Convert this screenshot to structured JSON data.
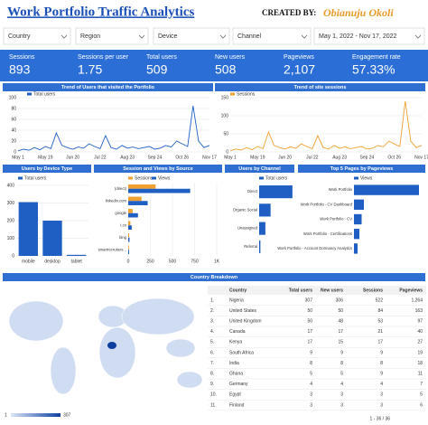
{
  "header": {
    "title": "Work Portfolio Traffic Analytics",
    "created_by": "CREATED BY:",
    "author": "Obianuju Okoli"
  },
  "filters": [
    "Country",
    "Region",
    "Device",
    "Channel",
    "May 1, 2022 - Nov 17, 2022"
  ],
  "kpis": [
    {
      "label": "Sessions",
      "value": "893"
    },
    {
      "label": "Sessions per user",
      "value": "1.75"
    },
    {
      "label": "Total users",
      "value": "509"
    },
    {
      "label": "New users",
      "value": "508"
    },
    {
      "label": "Pageviews",
      "value": "2,107"
    },
    {
      "label": "Engagement rate",
      "value": "57.33%"
    }
  ],
  "chart_data": [
    {
      "type": "line",
      "title": "Trend of Users that visited the Portfolio",
      "categories": [
        "May 1",
        null,
        null,
        null,
        null,
        "May 19",
        null,
        null,
        null,
        null,
        "Jun 20",
        null,
        null,
        null,
        null,
        "Jul 22",
        null,
        null,
        null,
        null,
        "Aug 23",
        null,
        null,
        null,
        null,
        "Sep 24",
        null,
        null,
        null,
        null,
        "Oct 26",
        null,
        null,
        null,
        null,
        "Nov 17"
      ],
      "series": [
        {
          "name": "Total users",
          "color": "#1f5fc4",
          "values": [
            2,
            5,
            3,
            8,
            4,
            10,
            6,
            35,
            12,
            8,
            5,
            9,
            7,
            15,
            10,
            6,
            30,
            8,
            5,
            12,
            7,
            9,
            6,
            8,
            10,
            5,
            7,
            12,
            9,
            20,
            15,
            10,
            85,
            20,
            8,
            12
          ]
        }
      ],
      "ylim": [
        0,
        100
      ],
      "yticks": [
        0,
        20,
        40,
        60,
        80,
        100
      ],
      "grid": true
    },
    {
      "type": "line",
      "title": "Trend of site sessions",
      "categories": [
        "May 1",
        null,
        null,
        null,
        null,
        "May 19",
        null,
        null,
        null,
        null,
        "Jun 20",
        null,
        null,
        null,
        null,
        "Jul 22",
        null,
        null,
        null,
        null,
        "Aug 23",
        null,
        null,
        null,
        null,
        "Sep 24",
        null,
        null,
        null,
        null,
        "Oct 26",
        null,
        null,
        null,
        null,
        "Nov 17"
      ],
      "series": [
        {
          "name": "Sessions",
          "color": "#f0a030",
          "values": [
            3,
            8,
            5,
            12,
            6,
            15,
            9,
            55,
            18,
            12,
            8,
            14,
            10,
            22,
            15,
            9,
            45,
            12,
            8,
            18,
            10,
            14,
            9,
            12,
            15,
            8,
            10,
            18,
            14,
            30,
            22,
            15,
            140,
            30,
            12,
            18
          ]
        }
      ],
      "ylim": [
        0,
        150
      ],
      "yticks": [
        0,
        50,
        100,
        150
      ],
      "grid": true
    },
    {
      "type": "bar",
      "title": "Users by Device Type",
      "categories": [
        "mobile",
        "desktop",
        "tablet"
      ],
      "series": [
        {
          "name": "Total users",
          "color": "#1f5fc4",
          "values": [
            305,
            200,
            6
          ]
        }
      ],
      "ylim": [
        0,
        400
      ],
      "yticks": [
        0,
        100,
        200,
        300,
        400
      ],
      "grid": true
    },
    {
      "type": "hbar",
      "title": "Session and Views by Source",
      "categories": [
        "(direct)",
        "linkedin.com",
        "google",
        "t.co",
        "bing",
        "smartrecruiters..."
      ],
      "series": [
        {
          "name": "Sessions",
          "color": "#f0a030",
          "values": [
            310,
            150,
            50,
            25,
            10,
            8
          ]
        },
        {
          "name": "Views",
          "color": "#1f5fc4",
          "values": [
            700,
            220,
            110,
            40,
            15,
            10
          ]
        }
      ],
      "xlim": [
        0,
        1000
      ],
      "xticks": [
        0,
        250,
        500,
        750,
        {
          "value": 1000,
          "label": "1K"
        }
      ],
      "grid": true
    },
    {
      "type": "hbar",
      "title": "Users by Channel",
      "categories": [
        "Direct",
        "Organic Social",
        "Unassigned",
        "Referral"
      ],
      "series": [
        {
          "name": "Total users",
          "color": "#1f5fc4",
          "values": [
            320,
            110,
            60,
            12
          ]
        }
      ],
      "xlim": [
        0,
        330
      ]
    },
    {
      "type": "hbar",
      "title": "Top 5 Pages by Pageviews",
      "categories": [
        "Work Portfolio",
        "Work Portfolio - CV Dashboard",
        "Work Portfolio - CV",
        "Work Portfolio - Certifications",
        "Work Portfolio - Account Dormancy Analytics"
      ],
      "series": [
        {
          "name": "Views",
          "color": "#1f5fc4",
          "values": [
            720,
            110,
            85,
            60,
            40
          ]
        }
      ],
      "xlim": [
        0,
        760
      ]
    },
    {
      "type": "map",
      "title": "Country Breakdown",
      "legend_min": 1,
      "legend_max": 307
    }
  ],
  "table": {
    "columns": [
      "Country",
      "Total users",
      "New users",
      "Sessions",
      "Pageviews"
    ],
    "rows": [
      [
        "1.",
        "Nigeria",
        "307",
        "306",
        "522",
        "1,264"
      ],
      [
        "2.",
        "United States",
        "50",
        "50",
        "84",
        "163"
      ],
      [
        "3.",
        "United Kingdom",
        "50",
        "48",
        "53",
        "97"
      ],
      [
        "4.",
        "Canada",
        "17",
        "17",
        "21",
        "40"
      ],
      [
        "5.",
        "Kenya",
        "17",
        "15",
        "17",
        "27"
      ],
      [
        "6.",
        "South Africa",
        "9",
        "9",
        "9",
        "19"
      ],
      [
        "7.",
        "India",
        "8",
        "8",
        "8",
        "18"
      ],
      [
        "8.",
        "Ghana",
        "5",
        "5",
        "9",
        "11"
      ],
      [
        "9.",
        "Germany",
        "4",
        "4",
        "4",
        "7"
      ],
      [
        "10.",
        "Egypt",
        "3",
        "3",
        "3",
        "5"
      ],
      [
        "11.",
        "Finland",
        "3",
        "3",
        "3",
        "6"
      ]
    ],
    "pagination": "1 - 36 / 36"
  }
}
